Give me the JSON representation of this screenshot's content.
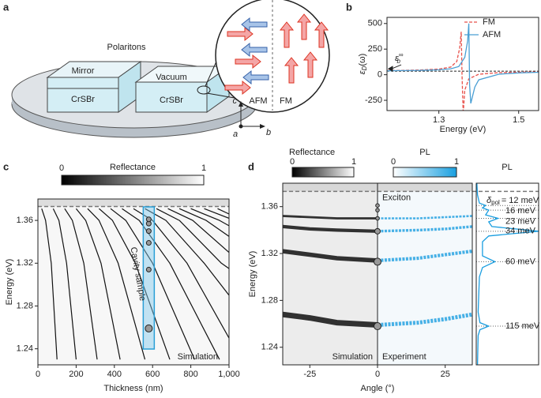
{
  "panels": [
    "a",
    "b",
    "c",
    "d"
  ],
  "diagram": {
    "title": "Polaritons",
    "left_box": [
      "Mirror",
      "CrSBr"
    ],
    "right_box": [
      "Vacuum",
      "CrSBr"
    ],
    "zoom": [
      "AFM",
      "FM"
    ],
    "axes": [
      "c",
      "a",
      "b"
    ]
  },
  "chart_data": [
    {
      "type": "line",
      "xlabel": "Energy (eV)",
      "ylabel": {
        "base": "ε",
        "sub": "D",
        "rest": "(ω)"
      },
      "xlim": [
        1.17,
        1.55
      ],
      "ylim": [
        -350,
        560
      ],
      "xticks": [
        1.3,
        1.5
      ],
      "yticks": [
        -250,
        0,
        250,
        500
      ],
      "reference": {
        "value": 35,
        "base": "ε",
        "sub": "b",
        "sup": "∞"
      },
      "series": [
        {
          "name": "FM",
          "color": "#e8504a",
          "dash": true,
          "x": [
            1.17,
            1.2,
            1.25,
            1.3,
            1.33,
            1.345,
            1.352,
            1.356,
            1.358,
            1.361,
            1.365,
            1.375,
            1.4,
            1.45,
            1.5,
            1.55
          ],
          "values": [
            40,
            42,
            46,
            55,
            75,
            130,
            260,
            420,
            0,
            -380,
            -150,
            -40,
            5,
            20,
            25,
            28
          ]
        },
        {
          "name": "AFM",
          "color": "#4a9fd4",
          "dash": false,
          "x": [
            1.17,
            1.2,
            1.25,
            1.3,
            1.33,
            1.35,
            1.365,
            1.372,
            1.375,
            1.377,
            1.38,
            1.39,
            1.4,
            1.45,
            1.5,
            1.55
          ],
          "values": [
            38,
            40,
            42,
            48,
            58,
            80,
            170,
            330,
            500,
            -100,
            -280,
            -120,
            -50,
            5,
            18,
            24
          ]
        }
      ]
    },
    {
      "type": "contour",
      "xlabel": "Thickness (nm)",
      "ylabel": "Energy (eV)",
      "colorbar": {
        "title": "Reflectance",
        "ticks": [
          0,
          1
        ]
      },
      "xlim": [
        0,
        1000
      ],
      "ylim": [
        1.225,
        1.38
      ],
      "xticks": [
        0,
        200,
        400,
        600,
        800,
        {
          "value": 1000,
          "label": "1,000"
        }
      ],
      "yticks": [
        1.24,
        1.28,
        1.32,
        1.36
      ],
      "exciton": 1.373,
      "sample_label": "Cavity sample",
      "label": "Simulation",
      "sample_points": {
        "x": [
          580,
          580,
          580,
          580,
          580,
          580
        ],
        "values": [
          1.259,
          1.314,
          1.339,
          1.35,
          1.357,
          1.361
        ]
      },
      "series": [
        {
          "x": [
            20,
            40,
            70,
            100
          ],
          "values": [
            1.371,
            1.36,
            1.32,
            1.23
          ]
        },
        {
          "x": [
            80,
            110,
            150,
            200
          ],
          "values": [
            1.371,
            1.36,
            1.32,
            1.23
          ]
        },
        {
          "x": [
            140,
            180,
            240,
            310
          ],
          "values": [
            1.371,
            1.36,
            1.32,
            1.23
          ]
        },
        {
          "x": [
            200,
            250,
            330,
            430
          ],
          "values": [
            1.371,
            1.36,
            1.32,
            1.23
          ]
        },
        {
          "x": [
            260,
            320,
            420,
            560
          ],
          "values": [
            1.371,
            1.36,
            1.32,
            1.23
          ]
        },
        {
          "x": [
            320,
            390,
            510,
            690
          ],
          "values": [
            1.371,
            1.36,
            1.32,
            1.23
          ]
        },
        {
          "x": [
            380,
            460,
            600,
            820
          ],
          "values": [
            1.371,
            1.36,
            1.32,
            1.23
          ]
        },
        {
          "x": [
            440,
            530,
            690,
            950
          ],
          "values": [
            1.371,
            1.36,
            1.32,
            1.23
          ]
        },
        {
          "x": [
            500,
            600,
            780,
            1000
          ],
          "values": [
            1.371,
            1.36,
            1.32,
            1.25
          ]
        },
        {
          "x": [
            560,
            670,
            870,
            1000
          ],
          "values": [
            1.371,
            1.36,
            1.32,
            1.29
          ]
        },
        {
          "x": [
            620,
            740,
            960,
            1000
          ],
          "values": [
            1.371,
            1.36,
            1.32,
            1.315
          ]
        },
        {
          "x": [
            680,
            810,
            1000
          ],
          "values": [
            1.371,
            1.36,
            1.33
          ]
        },
        {
          "x": [
            740,
            880,
            1000
          ],
          "values": [
            1.371,
            1.36,
            1.345
          ]
        },
        {
          "x": [
            800,
            950,
            1000
          ],
          "values": [
            1.371,
            1.36,
            1.355
          ]
        },
        {
          "x": [
            870,
            1000
          ],
          "values": [
            1.371,
            1.362
          ]
        },
        {
          "x": [
            940,
            1000
          ],
          "values": [
            1.371,
            1.366
          ]
        }
      ]
    },
    {
      "type": "dispersion",
      "xlabel": "Angle (°)",
      "ylabel": "Energy (eV)",
      "colorbars": [
        {
          "title": "Reflectance",
          "ticks": [
            0,
            1
          ]
        },
        {
          "title": "PL",
          "ticks": [
            0,
            1
          ]
        }
      ],
      "xlim": [
        -35,
        35
      ],
      "ylim": [
        1.225,
        1.38
      ],
      "xticks": [
        -25,
        0,
        25
      ],
      "yticks": [
        1.24,
        1.28,
        1.32,
        1.36
      ],
      "exciton": 1.373,
      "exciton_label": "Exciton",
      "labels": [
        "Simulation",
        "Experiment"
      ],
      "simulation": [
        {
          "x": [
            -35,
            -25,
            -15,
            0
          ],
          "values": [
            1.268,
            1.265,
            1.261,
            1.259
          ]
        },
        {
          "x": [
            -35,
            -25,
            -15,
            0
          ],
          "values": [
            1.322,
            1.319,
            1.316,
            1.314
          ]
        },
        {
          "x": [
            -35,
            -25,
            -15,
            0
          ],
          "values": [
            1.343,
            1.341,
            1.34,
            1.339
          ]
        },
        {
          "x": [
            -35,
            -25,
            -15,
            0
          ],
          "values": [
            1.352,
            1.351,
            1.35,
            1.35
          ]
        }
      ],
      "experiment": [
        {
          "x": [
            0,
            15,
            25,
            35
          ],
          "values": [
            1.259,
            1.261,
            1.264,
            1.268
          ]
        },
        {
          "x": [
            0,
            15,
            25,
            35
          ],
          "values": [
            1.314,
            1.316,
            1.319,
            1.322
          ]
        },
        {
          "x": [
            0,
            15,
            25,
            35
          ],
          "values": [
            1.339,
            1.34,
            1.341,
            1.343
          ]
        },
        {
          "x": [
            0,
            15,
            25,
            35
          ],
          "values": [
            1.35,
            1.35,
            1.351,
            1.352
          ]
        }
      ],
      "mode_energies": [
        1.361,
        1.357,
        1.35,
        1.339,
        1.313,
        1.258
      ],
      "pol_symbol": "δ",
      "pol_sub": "pol",
      "mode_labels": [
        "= 12 meV",
        "16 meV",
        "23 meV",
        "34 meV",
        "60 meV",
        "115 meV"
      ],
      "pl_label": "PL",
      "pl_spectrum": {
        "energies": [
          1.225,
          1.25,
          1.255,
          1.258,
          1.261,
          1.27,
          1.3,
          1.308,
          1.313,
          1.318,
          1.33,
          1.335,
          1.339,
          1.343,
          1.347,
          1.35,
          1.353,
          1.357,
          1.359,
          1.361,
          1.363,
          1.37,
          1.38
        ],
        "values": [
          0.02,
          0.03,
          0.06,
          0.2,
          0.06,
          0.03,
          0.05,
          0.1,
          0.3,
          0.1,
          0.1,
          0.2,
          1.0,
          0.25,
          0.2,
          0.35,
          0.15,
          0.2,
          0.1,
          0.15,
          0.05,
          0.02,
          0.01
        ],
        "xlim": [
          0,
          1
        ]
      }
    }
  ]
}
